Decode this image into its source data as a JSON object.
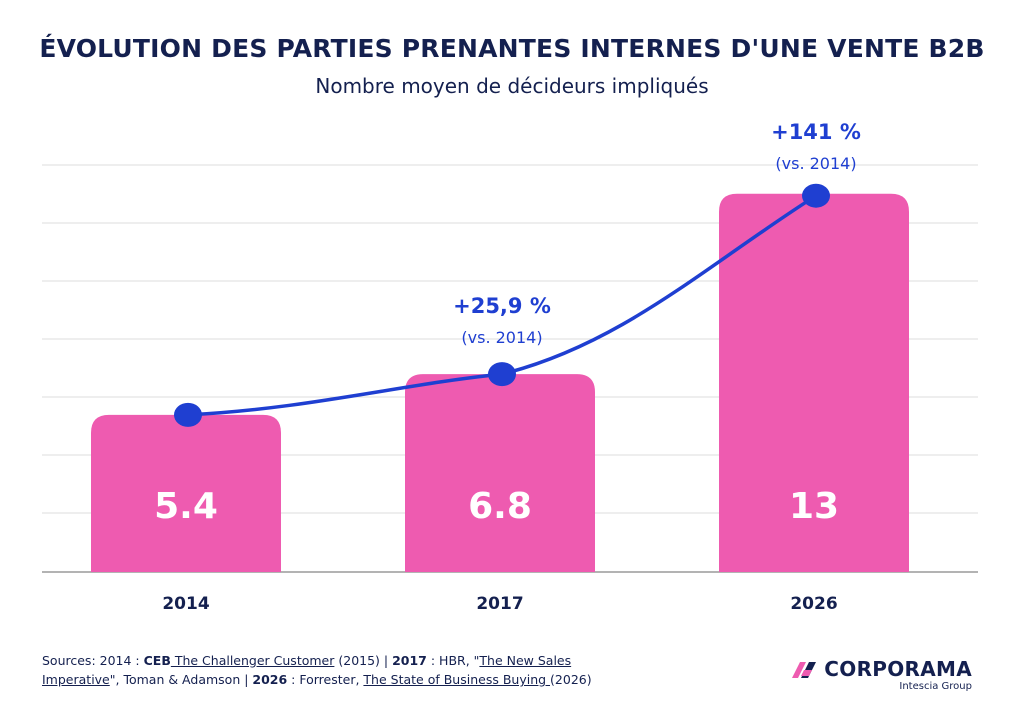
{
  "title": "ÉVOLUTION DES PARTIES PRENANTES INTERNES D'UNE VENTE B2B",
  "subtitle": "Nombre moyen de décideurs impliqués",
  "chart_data": {
    "type": "bar",
    "categories": [
      "2014",
      "2017",
      "2026"
    ],
    "values": [
      5.4,
      6.8,
      13
    ],
    "value_labels": [
      "5.4",
      "6.8",
      "13"
    ],
    "overlay_line": true,
    "annotations": [
      {
        "category": "2017",
        "main": "+25,9 %",
        "sub": "(vs. 2014)"
      },
      {
        "category": "2026",
        "main": "+141 %",
        "sub": "(vs. 2014)"
      }
    ],
    "grid": true,
    "colors": {
      "bar": "#ee5bb0",
      "line": "#1f3fd1",
      "grid": "#dcdcdc",
      "axis": "#9a9a9a"
    }
  },
  "sources": {
    "prefix": "Sources:  2014 : ",
    "src1_org": "CEB",
    "src1_title": " The Challenger Customer",
    "src1_year": " (2015) | ",
    "src2_year": "2017",
    "src2_org": " : HBR, \"",
    "src2_title_a": "The New Sales",
    "src2_title_b": "Imperative",
    "src2_tail": "\", Toman & Adamson | ",
    "src3_year": "2026",
    "src3_org": " : Forrester, ",
    "src3_title": "The State of Business Buying ",
    "src3_tail": "(2026)"
  },
  "brand": {
    "name": "CORPORAMA",
    "sub": "Intescia Group",
    "logo_icon": "corporama-logo-icon",
    "colors": {
      "pink": "#ee5bb0",
      "navy": "#14204f"
    }
  }
}
